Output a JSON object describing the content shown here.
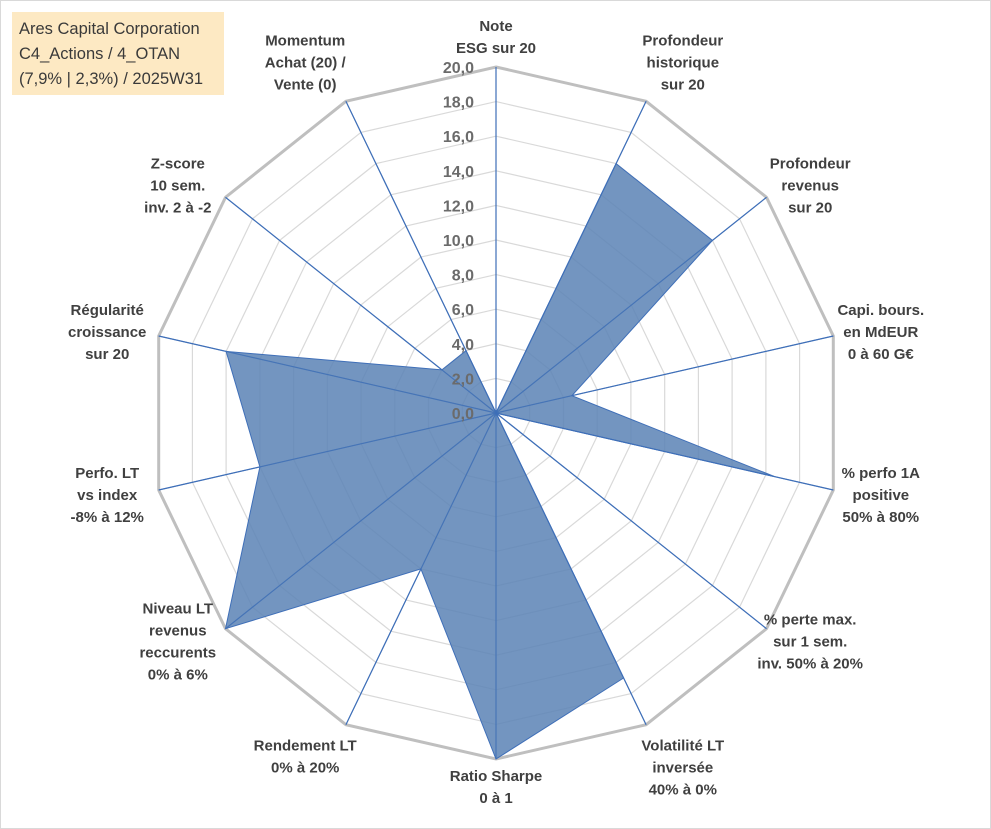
{
  "info_box": {
    "lines": [
      "Ares Capital Corporation",
      "C4_Actions / 4_OTAN",
      "(7,9% | 2,3%) / 2025W31"
    ]
  },
  "colors": {
    "fill": "#5b82b5",
    "axis": "#3f6fb8",
    "grid_outer": "#bfbfbf",
    "grid_inner": "#d9d9d9",
    "info_bg": "#fde9c3"
  },
  "chart_data": {
    "type": "radar",
    "title": "",
    "rmin": 0,
    "rmax": 20,
    "tick_step": 2,
    "tick_labels": [
      "0,0",
      "2,0",
      "4,0",
      "6,0",
      "8,0",
      "10,0",
      "12,0",
      "14,0",
      "16,0",
      "18,0",
      "20,0"
    ],
    "axes": [
      {
        "label": [
          "Note",
          "ESG sur 20"
        ]
      },
      {
        "label": [
          "Profondeur",
          "historique",
          "sur 20"
        ]
      },
      {
        "label": [
          "Profondeur",
          "revenus",
          "sur 20"
        ]
      },
      {
        "label": [
          "Capi. bours.",
          "en MdEUR",
          "0 à 60 G€"
        ]
      },
      {
        "label": [
          "% perfo 1A",
          "positive",
          "50% à 80%"
        ]
      },
      {
        "label": [
          "% perte max.",
          "sur 1 sem.",
          "inv. 50% à 20%"
        ]
      },
      {
        "label": [
          "Volatilité LT",
          "inversée",
          "40% à 0%"
        ]
      },
      {
        "label": [
          "Ratio Sharpe",
          "0 à 1"
        ]
      },
      {
        "label": [
          "Rendement LT",
          "0% à 20%"
        ]
      },
      {
        "label": [
          "Niveau LT",
          "revenus",
          "reccurents",
          "0% à 6%"
        ]
      },
      {
        "label": [
          "Perfo. LT",
          "vs index",
          "-8% à 12%"
        ]
      },
      {
        "label": [
          "Régularité",
          "croissance",
          "sur 20"
        ]
      },
      {
        "label": [
          "Z-score",
          "10 sem.",
          "inv. 2 à -2"
        ]
      },
      {
        "label": [
          "Momentum",
          "Achat (20) /",
          "Vente (0)"
        ]
      }
    ],
    "series": [
      {
        "values": [
          0,
          16,
          16,
          4.5,
          16.5,
          0,
          17,
          20,
          10,
          20,
          14,
          16,
          4,
          4
        ]
      }
    ],
    "grid": true,
    "legend": "none"
  }
}
